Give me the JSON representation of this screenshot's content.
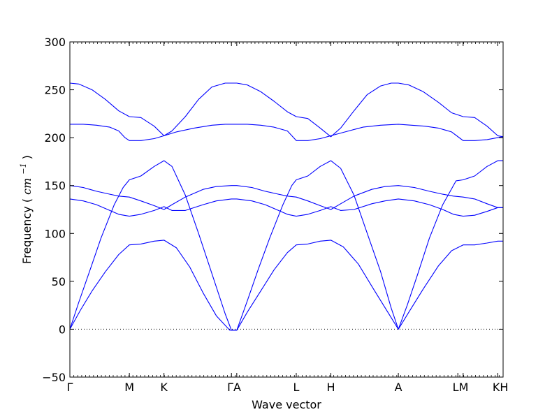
{
  "chart_data": {
    "type": "line",
    "xlabel": "Wave vector",
    "ylabel": "Frequency",
    "ylabel_unit_base": "cm",
    "ylabel_unit_exp": "−1",
    "ylim": [
      -50,
      300
    ],
    "yticks": [
      -50,
      0,
      50,
      100,
      150,
      200,
      250,
      300
    ],
    "grid": false,
    "legend": "none",
    "line_color": "#0000ff",
    "zero_line_color": "#000000",
    "xlim": [
      0,
      4.66
    ],
    "path_points": [
      {
        "label": "Γ",
        "x": 0.0
      },
      {
        "label": "M",
        "x": 0.67
      },
      {
        "label": "K",
        "x": 1.06
      },
      {
        "label": "Γ",
        "x": 1.82
      },
      {
        "label": "A",
        "x": 1.88
      },
      {
        "label": "L",
        "x": 2.55
      },
      {
        "label": "H",
        "x": 2.94
      },
      {
        "label": "A",
        "x": 3.7
      },
      {
        "label": "L",
        "x": 4.37
      },
      {
        "label": "M",
        "x": 4.43
      },
      {
        "label": "K",
        "x": 4.82
      },
      {
        "label": "H",
        "x": 4.88
      }
    ],
    "tick_labels_displayed": [
      "Γ",
      "M",
      "K",
      "ΓA",
      "L",
      "H",
      "A",
      "LM",
      "KH"
    ],
    "series": [
      {
        "x": [
          0.0,
          0.12,
          0.25,
          0.4,
          0.55,
          0.67,
          0.8,
          0.95,
          1.06,
          1.2,
          1.35,
          1.5,
          1.65,
          1.8,
          1.88,
          2.0,
          2.15,
          2.3,
          2.45,
          2.55,
          2.68,
          2.82,
          2.94,
          3.08,
          3.25,
          3.42,
          3.58,
          3.7,
          3.82,
          3.98,
          4.15,
          4.3,
          4.43,
          4.56,
          4.7,
          4.82,
          4.88
        ],
        "values": [
          0,
          20,
          40,
          60,
          78,
          88,
          89,
          92,
          93,
          85,
          65,
          38,
          14,
          -1,
          -1,
          18,
          40,
          62,
          80,
          88,
          89,
          92,
          93,
          86,
          68,
          42,
          18,
          0,
          18,
          42,
          66,
          82,
          88,
          88,
          90,
          92,
          92
        ]
      },
      {
        "x": [
          0.0,
          0.1,
          0.22,
          0.35,
          0.5,
          0.6,
          0.67,
          0.8,
          0.95,
          1.06,
          1.15,
          1.3,
          1.45,
          1.6,
          1.75,
          1.82,
          1.88,
          2.0,
          2.12,
          2.25,
          2.4,
          2.5,
          2.55,
          2.68,
          2.82,
          2.94,
          3.05,
          3.2,
          3.35,
          3.5,
          3.62,
          3.7,
          3.8,
          3.92,
          4.05,
          4.2,
          4.35,
          4.43,
          4.56,
          4.7,
          4.82,
          4.88
        ],
        "values": [
          0,
          28,
          60,
          95,
          130,
          148,
          156,
          160,
          170,
          176,
          170,
          140,
          100,
          58,
          16,
          -1,
          -1,
          30,
          62,
          95,
          130,
          150,
          156,
          160,
          170,
          176,
          168,
          140,
          100,
          60,
          22,
          0,
          25,
          58,
          95,
          130,
          155,
          156,
          160,
          170,
          176,
          176
        ]
      },
      {
        "x": [
          0.0,
          0.15,
          0.3,
          0.45,
          0.55,
          0.67,
          0.8,
          0.95,
          1.06,
          1.15,
          1.3,
          1.5,
          1.65,
          1.82,
          1.88,
          2.05,
          2.2,
          2.35,
          2.45,
          2.55,
          2.68,
          2.82,
          2.94,
          3.05,
          3.2,
          3.4,
          3.55,
          3.7,
          3.88,
          4.05,
          4.2,
          4.32,
          4.43,
          4.56,
          4.7,
          4.82,
          4.88
        ],
        "values": [
          136,
          134,
          130,
          124,
          120,
          118,
          120,
          124,
          128,
          124,
          124,
          130,
          134,
          136,
          136,
          134,
          130,
          124,
          120,
          118,
          120,
          124,
          128,
          124,
          125,
          131,
          134,
          136,
          134,
          130,
          125,
          120,
          118,
          119,
          123,
          127,
          127
        ]
      },
      {
        "x": [
          0.0,
          0.15,
          0.3,
          0.45,
          0.55,
          0.67,
          0.8,
          0.95,
          1.06,
          1.15,
          1.3,
          1.5,
          1.65,
          1.82,
          1.88,
          2.05,
          2.2,
          2.35,
          2.45,
          2.55,
          2.68,
          2.82,
          2.94,
          3.05,
          3.2,
          3.4,
          3.55,
          3.7,
          3.88,
          4.05,
          4.2,
          4.32,
          4.43,
          4.56,
          4.7,
          4.82,
          4.88
        ],
        "values": [
          150,
          148,
          144,
          141,
          139,
          138,
          134,
          129,
          125,
          130,
          138,
          146,
          149,
          150,
          150,
          148,
          144,
          141,
          139,
          138,
          134,
          129,
          125,
          131,
          139,
          146,
          149,
          150,
          148,
          144,
          141,
          139,
          138,
          136,
          131,
          127,
          127
        ]
      },
      {
        "x": [
          0.0,
          0.15,
          0.3,
          0.45,
          0.55,
          0.62,
          0.67,
          0.8,
          0.95,
          1.06,
          1.2,
          1.4,
          1.6,
          1.75,
          1.82,
          1.88,
          2.0,
          2.15,
          2.3,
          2.45,
          2.52,
          2.55,
          2.68,
          2.82,
          2.94,
          3.1,
          3.3,
          3.5,
          3.7,
          3.85,
          4.0,
          4.15,
          4.3,
          4.4,
          4.43,
          4.56,
          4.7,
          4.82,
          4.88
        ],
        "values": [
          214,
          214,
          213,
          211,
          207,
          200,
          197,
          197,
          199,
          202,
          206,
          210,
          213,
          214,
          214,
          214,
          214,
          213,
          211,
          207,
          200,
          197,
          197,
          199,
          202,
          206,
          211,
          213,
          214,
          213,
          212,
          210,
          206,
          199,
          197,
          197,
          198,
          200,
          201
        ]
      },
      {
        "x": [
          0.0,
          0.1,
          0.25,
          0.4,
          0.55,
          0.67,
          0.8,
          0.95,
          1.06,
          1.15,
          1.3,
          1.45,
          1.6,
          1.75,
          1.82,
          1.88,
          2.0,
          2.15,
          2.3,
          2.45,
          2.55,
          2.68,
          2.82,
          2.94,
          3.05,
          3.2,
          3.35,
          3.5,
          3.62,
          3.7,
          3.82,
          3.98,
          4.15,
          4.3,
          4.43,
          4.56,
          4.7,
          4.82,
          4.88
        ],
        "values": [
          257,
          256,
          250,
          240,
          228,
          222,
          221,
          212,
          202,
          207,
          222,
          240,
          253,
          257,
          257,
          257,
          255,
          248,
          238,
          227,
          222,
          220,
          210,
          201,
          210,
          228,
          245,
          254,
          257,
          257,
          255,
          248,
          237,
          226,
          222,
          221,
          212,
          202,
          201
        ]
      }
    ]
  }
}
